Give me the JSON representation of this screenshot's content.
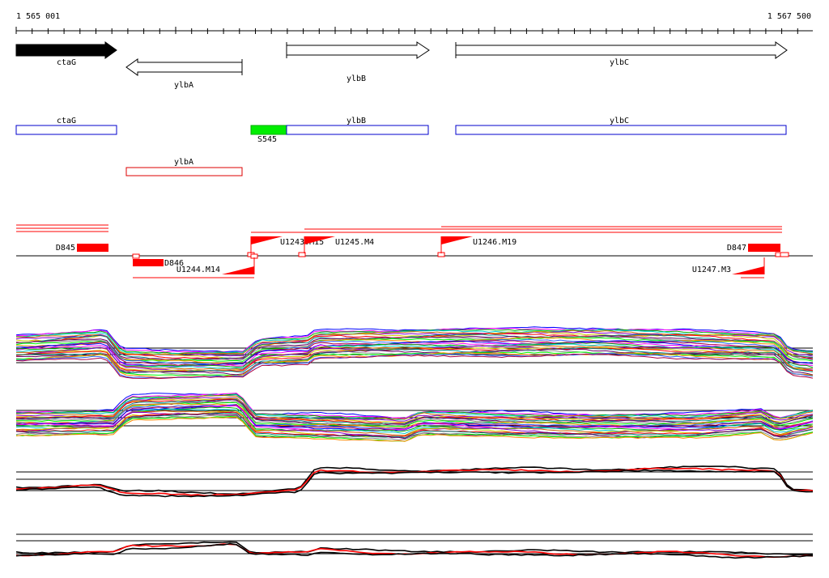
{
  "ruler": {
    "start_label": "1 565 001",
    "end_label": "1 567 500"
  },
  "genes": [
    {
      "name": "ctaG",
      "strand": "+",
      "filled": true
    },
    {
      "name": "ylbA",
      "strand": "-",
      "filled": false
    },
    {
      "name": "ylbB",
      "strand": "+",
      "filled": false
    },
    {
      "name": "ylbC",
      "strand": "+",
      "filled": false
    }
  ],
  "cds_boxes": [
    {
      "name": "ctaG",
      "color": "#0000cc"
    },
    {
      "name": "ylbB",
      "color": "#0000cc"
    },
    {
      "name": "ylbC",
      "color": "#0000cc"
    },
    {
      "name": "ylbA",
      "color": "#dd0000"
    }
  ],
  "signal": {
    "name": "S545",
    "color": "#00ee00"
  },
  "features": {
    "downregulated": [
      {
        "name": "D845"
      },
      {
        "name": "D846"
      },
      {
        "name": "D847"
      }
    ],
    "upshifts": [
      {
        "name": "U1243.M15"
      },
      {
        "name": "U1245.M4"
      },
      {
        "name": "U1246.M19"
      },
      {
        "name": "U1244.M14"
      },
      {
        "name": "U1247.M3"
      }
    ]
  },
  "colors": {
    "feature_red": "#ff0000",
    "axis": "#000000",
    "profile_black": "#000000",
    "profile_red": "#ff0000"
  }
}
